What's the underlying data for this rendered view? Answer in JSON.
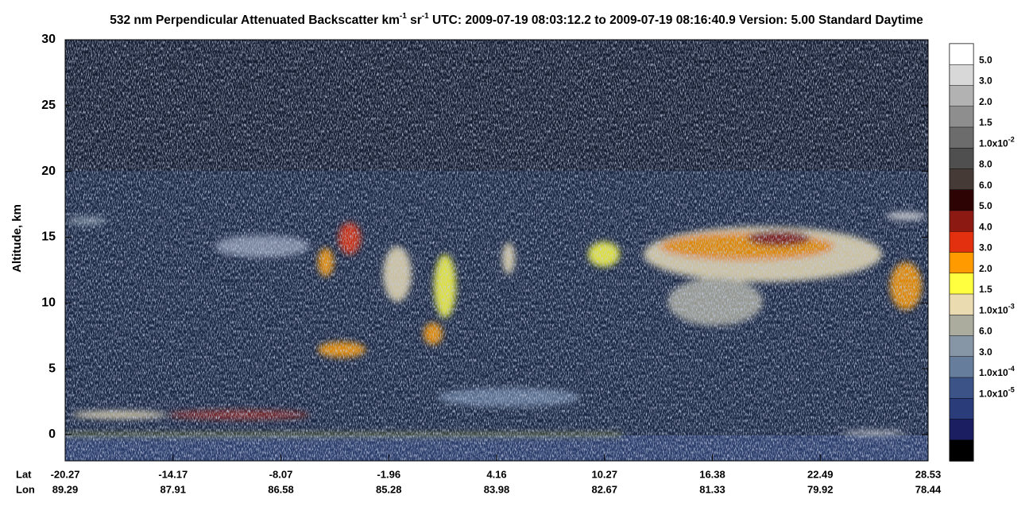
{
  "chart_data": {
    "type": "heatmap",
    "title_segments": [
      {
        "text": "532 nm Perpendicular Attenuated Backscatter km",
        "sup": false
      },
      {
        "text": "-1",
        "sup": true
      },
      {
        "text": " sr",
        "sup": false
      },
      {
        "text": "-1",
        "sup": true
      },
      {
        "text": "  UTC: 2009-07-19 08:03:12.2 to 2009-07-19 08:16:40.9  Version: 5.00 Standard Daytime",
        "sup": false
      }
    ],
    "ylabel": "Altitude, km",
    "ylim": [
      -2,
      30
    ],
    "yticks": [
      0,
      5,
      10,
      15,
      20,
      25,
      30
    ],
    "x_rows": [
      {
        "name": "Lat",
        "labels": [
          -20.27,
          -14.17,
          -8.07,
          -1.96,
          4.16,
          10.27,
          16.38,
          22.49,
          28.53
        ]
      },
      {
        "name": "Lon",
        "labels": [
          89.29,
          87.91,
          86.58,
          85.28,
          83.98,
          82.67,
          81.33,
          79.92,
          78.44
        ]
      }
    ],
    "colorbar": {
      "colors": [
        "#ffffff",
        "#d8d8d8",
        "#b2b2b2",
        "#8e8e8e",
        "#6c6c6c",
        "#4f4f4f",
        "#453a36",
        "#2e0303",
        "#8c1a12",
        "#e3300e",
        "#ff9a00",
        "#ffff40",
        "#eadbb0",
        "#abab9e",
        "#8796a6",
        "#667d9c",
        "#3c5387",
        "#2a3c7a",
        "#1b1f62",
        "#000000"
      ],
      "labels": [
        {
          "label": "5.0"
        },
        {
          "label": "3.0"
        },
        {
          "label": "2.0"
        },
        {
          "label": "1.5"
        },
        {
          "label": "1.0x10",
          "exp": "-2"
        },
        {
          "label": "8.0"
        },
        {
          "label": "6.0"
        },
        {
          "label": "5.0"
        },
        {
          "label": "4.0"
        },
        {
          "label": "3.0"
        },
        {
          "label": "2.0"
        },
        {
          "label": "1.5"
        },
        {
          "label": "1.0x10",
          "exp": "-3"
        },
        {
          "label": "6.0"
        },
        {
          "label": "3.0"
        },
        {
          "label": "1.0x10",
          "exp": "-4"
        },
        {
          "label": "1.0x10",
          "exp": "-5"
        }
      ]
    }
  }
}
